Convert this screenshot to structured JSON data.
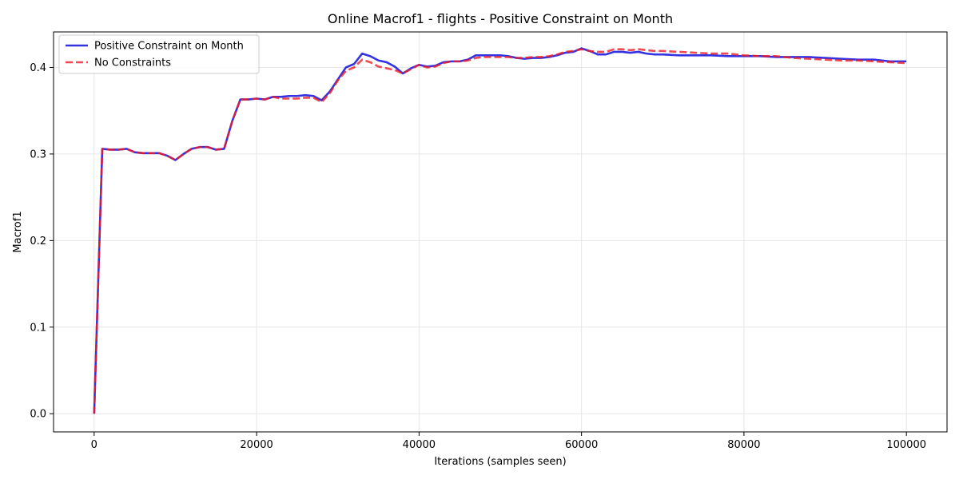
{
  "chart_data": {
    "type": "line",
    "title": "Online Macrof1 - flights - Positive Constraint on Month",
    "xlabel": "Iterations (samples seen)",
    "ylabel": "Macrof1",
    "xlim": [
      -5000,
      105000
    ],
    "ylim": [
      -0.021,
      0.441
    ],
    "xticks": [
      0,
      20000,
      40000,
      60000,
      80000,
      100000
    ],
    "xtick_labels": [
      "0",
      "20000",
      "40000",
      "60000",
      "80000",
      "100000"
    ],
    "yticks": [
      0.0,
      0.1,
      0.2,
      0.3,
      0.4
    ],
    "ytick_labels": [
      "0.0",
      "0.1",
      "0.2",
      "0.3",
      "0.4"
    ],
    "grid": true,
    "legend_position": "upper-left",
    "series": [
      {
        "name": "Positive Constraint on Month",
        "color": "#0000dd",
        "style": "solid",
        "x": [
          0,
          1000,
          2000,
          3000,
          4000,
          5000,
          6000,
          7000,
          8000,
          9000,
          10000,
          11000,
          12000,
          13000,
          14000,
          15000,
          16000,
          17000,
          18000,
          19000,
          20000,
          21000,
          22000,
          23000,
          24000,
          25000,
          26000,
          27000,
          28000,
          29000,
          30000,
          31000,
          32000,
          33000,
          34000,
          35000,
          36000,
          37000,
          38000,
          39000,
          40000,
          41000,
          42000,
          43000,
          44000,
          45000,
          46000,
          47000,
          48000,
          49000,
          50000,
          51000,
          52000,
          53000,
          54000,
          55000,
          56000,
          57000,
          58000,
          59000,
          60000,
          61000,
          62000,
          63000,
          64000,
          65000,
          66000,
          67000,
          68000,
          69000,
          70000,
          72000,
          74000,
          76000,
          78000,
          80000,
          82000,
          84000,
          86000,
          88000,
          90000,
          92000,
          94000,
          96000,
          98000,
          100000
        ],
        "y": [
          0.0,
          0.306,
          0.305,
          0.305,
          0.306,
          0.302,
          0.301,
          0.301,
          0.301,
          0.298,
          0.293,
          0.3,
          0.306,
          0.308,
          0.308,
          0.305,
          0.306,
          0.338,
          0.363,
          0.363,
          0.364,
          0.363,
          0.366,
          0.366,
          0.367,
          0.367,
          0.368,
          0.367,
          0.362,
          0.372,
          0.386,
          0.4,
          0.404,
          0.416,
          0.413,
          0.408,
          0.406,
          0.401,
          0.393,
          0.399,
          0.403,
          0.401,
          0.402,
          0.406,
          0.407,
          0.407,
          0.409,
          0.414,
          0.414,
          0.414,
          0.414,
          0.413,
          0.411,
          0.41,
          0.411,
          0.411,
          0.412,
          0.414,
          0.417,
          0.418,
          0.422,
          0.419,
          0.415,
          0.415,
          0.418,
          0.418,
          0.417,
          0.418,
          0.416,
          0.415,
          0.415,
          0.414,
          0.414,
          0.414,
          0.413,
          0.413,
          0.413,
          0.412,
          0.412,
          0.412,
          0.411,
          0.41,
          0.409,
          0.409,
          0.407,
          0.407
        ]
      },
      {
        "name": "No Constraints",
        "color": "#ee1c25",
        "style": "dashed",
        "x": [
          0,
          1000,
          2000,
          3000,
          4000,
          5000,
          6000,
          7000,
          8000,
          9000,
          10000,
          11000,
          12000,
          13000,
          14000,
          15000,
          16000,
          17000,
          18000,
          19000,
          20000,
          21000,
          22000,
          23000,
          24000,
          25000,
          26000,
          27000,
          28000,
          29000,
          30000,
          31000,
          32000,
          33000,
          34000,
          35000,
          36000,
          37000,
          38000,
          39000,
          40000,
          41000,
          42000,
          43000,
          44000,
          45000,
          46000,
          47000,
          48000,
          49000,
          50000,
          51000,
          52000,
          53000,
          54000,
          55000,
          56000,
          57000,
          58000,
          59000,
          60000,
          61000,
          62000,
          63000,
          64000,
          65000,
          66000,
          67000,
          68000,
          69000,
          70000,
          72000,
          74000,
          76000,
          78000,
          80000,
          82000,
          84000,
          86000,
          88000,
          90000,
          92000,
          94000,
          96000,
          98000,
          100000
        ],
        "y": [
          0.0,
          0.306,
          0.305,
          0.305,
          0.306,
          0.302,
          0.301,
          0.301,
          0.301,
          0.298,
          0.293,
          0.3,
          0.306,
          0.308,
          0.308,
          0.305,
          0.306,
          0.338,
          0.363,
          0.363,
          0.364,
          0.363,
          0.366,
          0.364,
          0.364,
          0.364,
          0.365,
          0.365,
          0.36,
          0.37,
          0.385,
          0.396,
          0.4,
          0.409,
          0.406,
          0.401,
          0.399,
          0.397,
          0.393,
          0.398,
          0.403,
          0.4,
          0.401,
          0.405,
          0.407,
          0.407,
          0.408,
          0.411,
          0.412,
          0.412,
          0.412,
          0.412,
          0.411,
          0.411,
          0.412,
          0.412,
          0.413,
          0.415,
          0.418,
          0.419,
          0.421,
          0.419,
          0.418,
          0.418,
          0.421,
          0.421,
          0.42,
          0.421,
          0.42,
          0.419,
          0.419,
          0.418,
          0.417,
          0.416,
          0.416,
          0.414,
          0.413,
          0.413,
          0.411,
          0.41,
          0.409,
          0.408,
          0.408,
          0.407,
          0.406,
          0.405
        ]
      }
    ]
  }
}
